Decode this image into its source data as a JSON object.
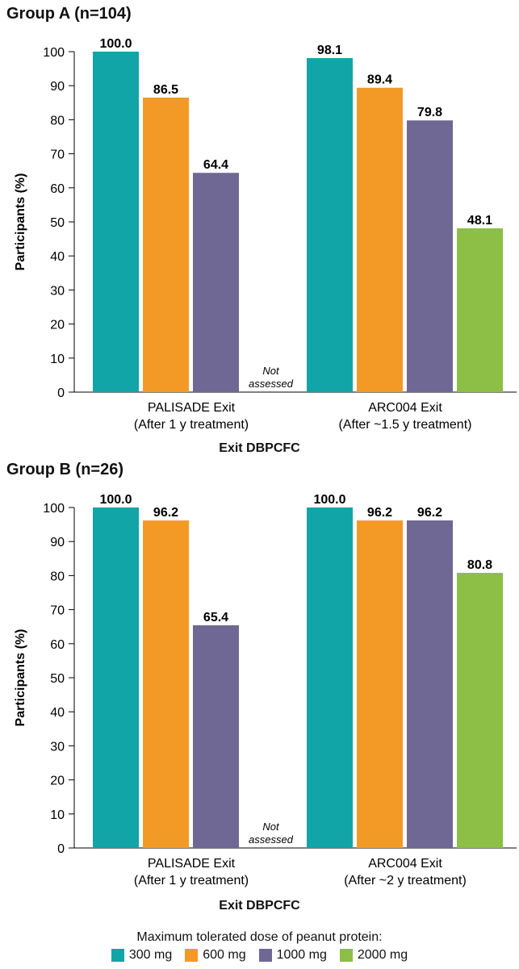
{
  "chart_data": [
    {
      "type": "bar",
      "title": "Group A (n=104)",
      "xlabel": "Exit DBPCFC",
      "ylabel": "Participants (%)",
      "ylim": [
        0,
        100
      ],
      "yticks": [
        0,
        10,
        20,
        30,
        40,
        50,
        60,
        70,
        80,
        90,
        100
      ],
      "categories": [
        {
          "line1": "PALISADE Exit",
          "line2": "(After 1 y treatment)"
        },
        {
          "line1": "ARC004 Exit",
          "line2": "(After ~1.5 y treatment)"
        }
      ],
      "series": [
        {
          "name": "300 mg",
          "color": "#12a5a8",
          "values": [
            100.0,
            98.1
          ],
          "labels": [
            "100.0",
            "98.1"
          ]
        },
        {
          "name": "600 mg",
          "color": "#f39a26",
          "values": [
            86.5,
            89.4
          ],
          "labels": [
            "86.5",
            "89.4"
          ]
        },
        {
          "name": "1000 mg",
          "color": "#6f6794",
          "values": [
            64.4,
            79.8
          ],
          "labels": [
            "64.4",
            "79.8"
          ]
        },
        {
          "name": "2000 mg",
          "color": "#8dbe45",
          "values": [
            null,
            48.1
          ],
          "labels": [
            "",
            "48.1"
          ]
        }
      ],
      "not_assessed": {
        "line1": "Not",
        "line2": "assessed"
      }
    },
    {
      "type": "bar",
      "title": "Group B (n=26)",
      "xlabel": "Exit DBPCFC",
      "ylabel": "Participants (%)",
      "ylim": [
        0,
        100
      ],
      "yticks": [
        0,
        10,
        20,
        30,
        40,
        50,
        60,
        70,
        80,
        90,
        100
      ],
      "categories": [
        {
          "line1": "PALISADE Exit",
          "line2": "(After 1 y treatment)"
        },
        {
          "line1": "ARC004 Exit",
          "line2": "(After ~2 y treatment)"
        }
      ],
      "series": [
        {
          "name": "300 mg",
          "color": "#12a5a8",
          "values": [
            100.0,
            100.0
          ],
          "labels": [
            "100.0",
            "100.0"
          ]
        },
        {
          "name": "600 mg",
          "color": "#f39a26",
          "values": [
            96.2,
            96.2
          ],
          "labels": [
            "96.2",
            "96.2"
          ]
        },
        {
          "name": "1000 mg",
          "color": "#6f6794",
          "values": [
            65.4,
            96.2
          ],
          "labels": [
            "65.4",
            "96.2"
          ]
        },
        {
          "name": "2000 mg",
          "color": "#8dbe45",
          "values": [
            null,
            80.8
          ],
          "labels": [
            "",
            "80.8"
          ]
        }
      ],
      "not_assessed": {
        "line1": "Not",
        "line2": "assessed"
      }
    }
  ],
  "legend": {
    "title": "Maximum tolerated dose of peanut protein:",
    "items": [
      {
        "label": "300 mg",
        "color": "#12a5a8"
      },
      {
        "label": "600 mg",
        "color": "#f39a26"
      },
      {
        "label": "1000 mg",
        "color": "#6f6794"
      },
      {
        "label": "2000 mg",
        "color": "#8dbe45"
      }
    ]
  }
}
